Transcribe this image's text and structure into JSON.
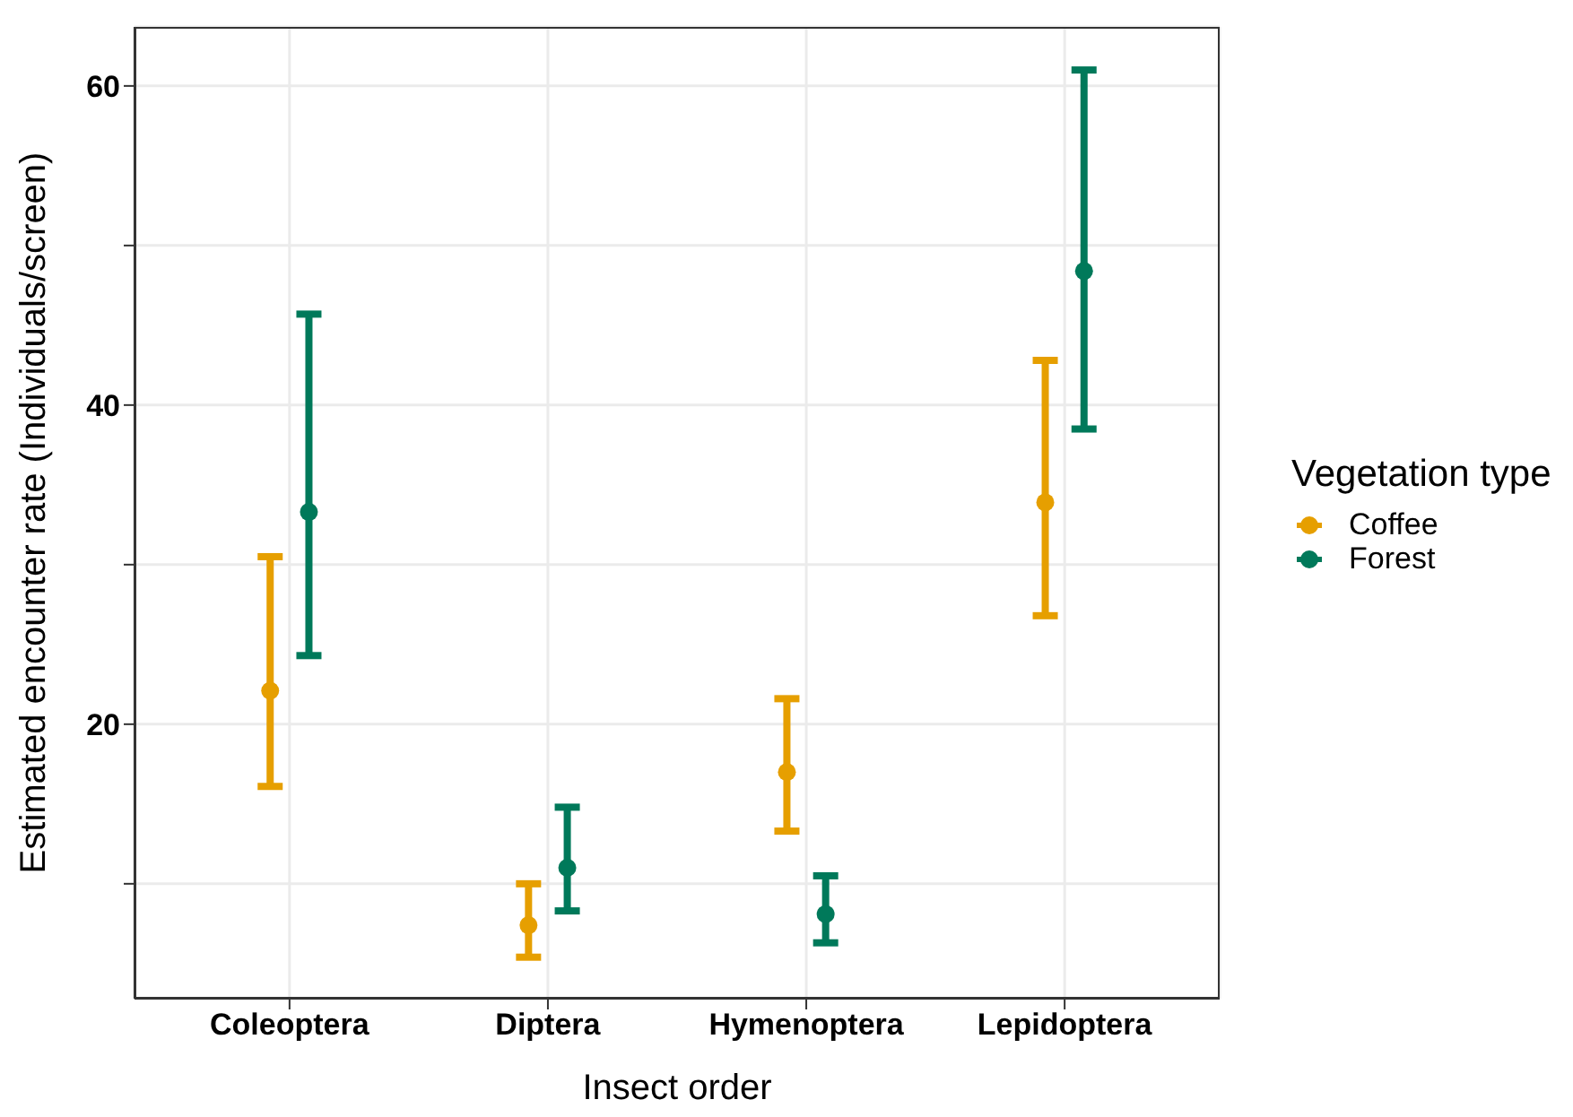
{
  "chart_data": {
    "type": "scatter",
    "xlabel": "Insect order",
    "ylabel": "Estimated encounter rate (Individuals/screen)",
    "legend_title": "Vegetation type",
    "categories": [
      "Coleoptera",
      "Diptera",
      "Hymenoptera",
      "Lepidoptera"
    ],
    "series": [
      {
        "name": "Coffee",
        "color": "#e69f00",
        "values": [
          22.1,
          7.4,
          17.0,
          33.9
        ],
        "errors": [
          [
            16.1,
            30.5
          ],
          [
            5.4,
            10.0
          ],
          [
            13.3,
            21.6
          ],
          [
            26.8,
            42.8
          ]
        ]
      },
      {
        "name": "Forest",
        "color": "#00795a",
        "values": [
          33.3,
          11.0,
          8.1,
          48.4
        ],
        "errors": [
          [
            24.3,
            45.7
          ],
          [
            8.3,
            14.8
          ],
          [
            6.3,
            10.5
          ],
          [
            38.5,
            61.0
          ]
        ]
      }
    ],
    "ylim": [
      2.8,
      63.7
    ],
    "yticks": [
      {
        "value": 10,
        "label": null
      },
      20,
      {
        "value": 30,
        "label": null
      },
      40,
      {
        "value": 50,
        "label": null
      },
      60
    ],
    "grid": true,
    "legend": "right",
    "marker": "circle"
  }
}
